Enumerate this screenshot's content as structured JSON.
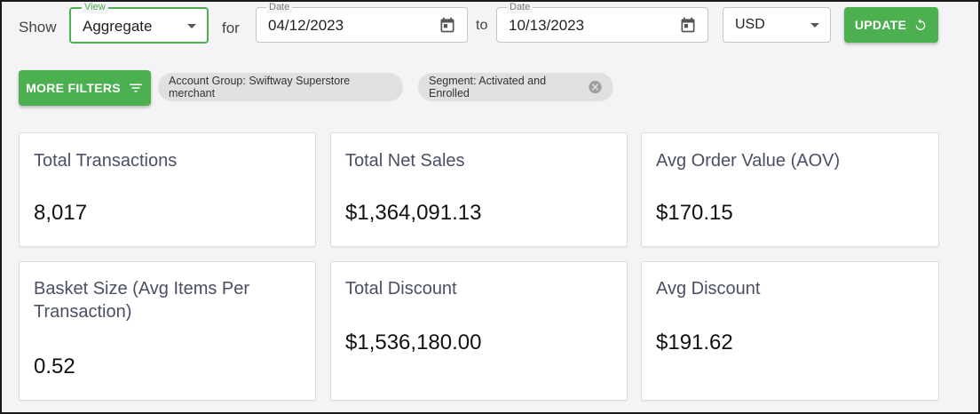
{
  "toolbar": {
    "show_label": "Show",
    "view": {
      "legend": "View",
      "value": "Aggregate"
    },
    "for_label": "for",
    "date_from": {
      "legend": "Date",
      "value": "04/12/2023"
    },
    "to_label": "to",
    "date_to": {
      "legend": "Date",
      "value": "10/13/2023"
    },
    "currency": {
      "value": "USD"
    },
    "update_label": "UPDATE"
  },
  "filters": {
    "more_filters_label": "MORE FILTERS",
    "chips": [
      {
        "label": "Account Group: Swiftway Superstore merchant"
      },
      {
        "label": "Segment: Activated and Enrolled"
      }
    ]
  },
  "metrics": [
    {
      "title": "Total Transactions",
      "value": "8,017"
    },
    {
      "title": "Total Net Sales",
      "value": "$1,364,091.13"
    },
    {
      "title": "Avg Order Value (AOV)",
      "value": "$170.15"
    },
    {
      "title": "Basket Size (Avg Items Per Transaction)",
      "value": "0.52"
    },
    {
      "title": "Total Discount",
      "value": "$1,536,180.00"
    },
    {
      "title": "Avg Discount",
      "value": "$191.62"
    }
  ],
  "colors": {
    "accent": "#4caf50",
    "chip_bg": "#e0e0e0",
    "card_title": "#4a4f65"
  }
}
